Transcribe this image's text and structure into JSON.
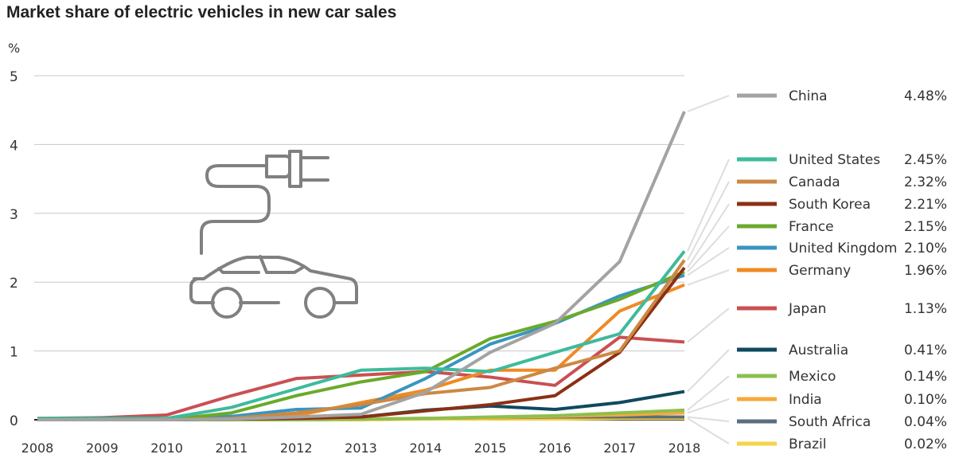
{
  "chart_data": {
    "type": "line",
    "title": "Market share of electric vehicles in new car sales",
    "ylabel": "%",
    "xlabel": "",
    "ylim": [
      0,
      5
    ],
    "yticks": [
      "0",
      "1",
      "2",
      "3",
      "4",
      "5"
    ],
    "x": [
      "2008",
      "2009",
      "2010",
      "2011",
      "2012",
      "2013",
      "2014",
      "2015",
      "2016",
      "2017",
      "2018"
    ],
    "grid": true,
    "legend_placement": "right",
    "series": [
      {
        "name": "China",
        "label": "4.48%",
        "color": "#a3a3a3",
        "values": [
          0,
          0,
          0,
          0.01,
          0.04,
          0.08,
          0.4,
          0.98,
          1.4,
          2.3,
          4.48
        ]
      },
      {
        "name": "United States",
        "label": "2.45%",
        "color": "#3dbb9c",
        "values": [
          0.02,
          0.02,
          0.02,
          0.18,
          0.45,
          0.72,
          0.75,
          0.7,
          0.98,
          1.25,
          2.45
        ]
      },
      {
        "name": "Canada",
        "label": "2.32%",
        "color": "#cc8844",
        "values": [
          0,
          0,
          0,
          0.02,
          0.1,
          0.22,
          0.38,
          0.47,
          0.75,
          1.0,
          2.32
        ]
      },
      {
        "name": "South Korea",
        "label": "2.21%",
        "color": "#8b3014",
        "values": [
          0,
          0,
          0,
          0.01,
          0.02,
          0.04,
          0.13,
          0.22,
          0.35,
          0.98,
          2.21
        ]
      },
      {
        "name": "France",
        "label": "2.15%",
        "color": "#6aaa2a",
        "values": [
          0,
          0,
          0,
          0.1,
          0.35,
          0.55,
          0.7,
          1.18,
          1.43,
          1.75,
          2.15
        ]
      },
      {
        "name": "United Kingdom",
        "label": "2.10%",
        "color": "#3a95c0",
        "values": [
          0,
          0,
          0,
          0.05,
          0.15,
          0.17,
          0.6,
          1.1,
          1.4,
          1.8,
          2.1
        ]
      },
      {
        "name": "Germany",
        "label": "1.96%",
        "color": "#f08a24",
        "values": [
          0,
          0,
          0,
          0.02,
          0.06,
          0.25,
          0.43,
          0.72,
          0.72,
          1.58,
          1.96
        ]
      },
      {
        "name": "Japan",
        "label": "1.13%",
        "color": "#c95052",
        "values": [
          0.02,
          0.03,
          0.07,
          0.35,
          0.6,
          0.65,
          0.7,
          0.62,
          0.5,
          1.2,
          1.13
        ]
      },
      {
        "name": "Australia",
        "label": "0.41%",
        "color": "#0e4a5e",
        "values": [
          0,
          0,
          0,
          0.01,
          0.03,
          0.04,
          0.14,
          0.2,
          0.15,
          0.25,
          0.41
        ]
      },
      {
        "name": "Mexico",
        "label": "0.14%",
        "color": "#8cc04e",
        "values": [
          0,
          0,
          0,
          0,
          0,
          0.01,
          0.02,
          0.04,
          0.06,
          0.1,
          0.14
        ]
      },
      {
        "name": "India",
        "label": "0.10%",
        "color": "#f7a93a",
        "values": [
          0,
          0,
          0,
          0,
          0,
          0.01,
          0.02,
          0.03,
          0.05,
          0.07,
          0.1
        ]
      },
      {
        "name": "South Africa",
        "label": "0.04%",
        "color": "#5a6e7e",
        "values": [
          0,
          0,
          0,
          0,
          0,
          0.01,
          0.02,
          0.03,
          0.04,
          0.04,
          0.04
        ]
      },
      {
        "name": "Brazil",
        "label": "0.02%",
        "color": "#f5d34a",
        "values": [
          0,
          0,
          0,
          0,
          0,
          0,
          0.01,
          0.01,
          0.01,
          0.02,
          0.02
        ]
      }
    ]
  }
}
